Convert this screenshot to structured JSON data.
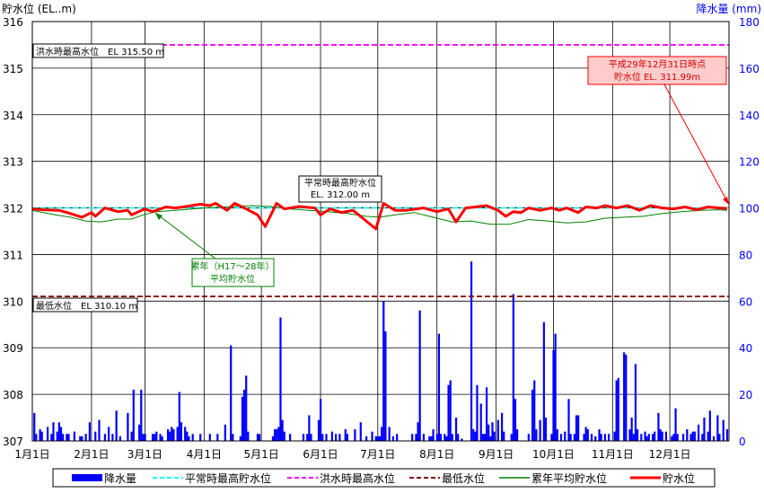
{
  "chart_data": {
    "type": "bar+line",
    "y_left_label": "貯水位 (EL..m)",
    "y_right_label": "降水量 (mm)",
    "ylim_left": [
      307,
      316
    ],
    "ylim_right": [
      0,
      180
    ],
    "yticks_left": [
      "307",
      "308",
      "309",
      "310",
      "311",
      "312",
      "313",
      "314",
      "315",
      "316"
    ],
    "yticks_right": [
      "0",
      "20",
      "40",
      "60",
      "80",
      "100",
      "120",
      "140",
      "160",
      "180"
    ],
    "months": [
      "1月1日",
      "2月1日",
      "3月1日",
      "4月1日",
      "5月1日",
      "6月1日",
      "7月1日",
      "8月1日",
      "9月1日",
      "10月1日",
      "11月1日",
      "12月1日"
    ],
    "reference_lines": [
      {
        "name": "平常時最高貯水位",
        "value": 312.0,
        "color": "#00ffff"
      },
      {
        "name": "洪水時最高水位",
        "value": 315.5,
        "color": "#ff00ff"
      },
      {
        "name": "最低水位",
        "value": 310.1,
        "color": "#800000"
      }
    ],
    "annotations": {
      "flood": "洪水時最高水位　EL 315.50 m",
      "normal_line1": "平常時最高貯水位",
      "normal_line2": "EL. 312.00 m",
      "low": "最低水位　EL 310.10 m",
      "avg_line1": "累年（H17～28年）",
      "avg_line2": "平均貯水位",
      "current_line1": "平成29年12月31日時点",
      "current_line2": "貯水位 EL. 311.99m"
    },
    "legend": [
      "降水量",
      "平常時最高貯水位",
      "洪水時最高水位",
      "最低水位",
      "累年平均貯水位",
      "貯水位"
    ],
    "colors": {
      "rain": "#0000ff",
      "water_level": "#ff0000",
      "average": "#008000",
      "normal_max": "#00ffff",
      "flood": "#ff00ff",
      "low": "#800000",
      "right_axis": "#0000ff",
      "current_box_bg": "#ffcccc",
      "current_box_border": "#ff0000"
    },
    "series": [
      {
        "name": "貯水位",
        "points": [
          [
            0,
            311.98
          ],
          [
            6,
            311.96
          ],
          [
            14,
            311.95
          ],
          [
            20,
            311.88
          ],
          [
            26,
            311.8
          ],
          [
            31,
            311.9
          ],
          [
            33,
            311.82
          ],
          [
            38,
            312.0
          ],
          [
            45,
            311.92
          ],
          [
            50,
            311.95
          ],
          [
            52,
            311.85
          ],
          [
            59,
            311.98
          ],
          [
            63,
            311.92
          ],
          [
            70,
            312.02
          ],
          [
            75,
            312.0
          ],
          [
            82,
            312.04
          ],
          [
            88,
            312.08
          ],
          [
            93,
            312.05
          ],
          [
            96,
            312.1
          ],
          [
            102,
            311.95
          ],
          [
            106,
            312.1
          ],
          [
            112,
            311.98
          ],
          [
            118,
            311.85
          ],
          [
            122,
            311.6
          ],
          [
            128,
            312.1
          ],
          [
            132,
            311.98
          ],
          [
            140,
            312.03
          ],
          [
            148,
            312.0
          ],
          [
            151,
            311.85
          ],
          [
            156,
            311.98
          ],
          [
            162,
            311.9
          ],
          [
            168,
            311.95
          ],
          [
            174,
            311.75
          ],
          [
            180,
            311.55
          ],
          [
            184,
            312.1
          ],
          [
            190,
            311.95
          ],
          [
            196,
            311.95
          ],
          [
            205,
            312.0
          ],
          [
            212,
            311.92
          ],
          [
            218,
            311.98
          ],
          [
            222,
            311.7
          ],
          [
            227,
            312.0
          ],
          [
            232,
            312.02
          ],
          [
            238,
            312.05
          ],
          [
            244,
            311.95
          ],
          [
            248,
            311.82
          ],
          [
            252,
            311.92
          ],
          [
            256,
            311.9
          ],
          [
            260,
            312.0
          ],
          [
            266,
            311.95
          ],
          [
            272,
            312.0
          ],
          [
            276,
            311.95
          ],
          [
            280,
            312.0
          ],
          [
            286,
            311.9
          ],
          [
            290,
            312.02
          ],
          [
            296,
            312.0
          ],
          [
            300,
            312.05
          ],
          [
            306,
            312.0
          ],
          [
            312,
            312.05
          ],
          [
            318,
            311.95
          ],
          [
            324,
            312.05
          ],
          [
            330,
            312.0
          ],
          [
            336,
            311.98
          ],
          [
            342,
            312.02
          ],
          [
            348,
            311.96
          ],
          [
            354,
            312.02
          ],
          [
            360,
            312.0
          ],
          [
            364,
            311.99
          ]
        ]
      },
      {
        "name": "累年平均貯水位",
        "points": [
          [
            0,
            311.95
          ],
          [
            6,
            311.9
          ],
          [
            12,
            311.85
          ],
          [
            20,
            311.8
          ],
          [
            28,
            311.72
          ],
          [
            36,
            311.7
          ],
          [
            45,
            311.76
          ],
          [
            52,
            311.76
          ],
          [
            58,
            311.85
          ],
          [
            65,
            311.92
          ],
          [
            75,
            311.95
          ],
          [
            90,
            312.0
          ],
          [
            100,
            312.02
          ],
          [
            115,
            312.05
          ],
          [
            125,
            312.03
          ],
          [
            135,
            311.98
          ],
          [
            145,
            311.95
          ],
          [
            155,
            311.92
          ],
          [
            165,
            311.88
          ],
          [
            175,
            311.82
          ],
          [
            182,
            311.8
          ],
          [
            190,
            311.85
          ],
          [
            200,
            311.9
          ],
          [
            210,
            311.8
          ],
          [
            220,
            311.7
          ],
          [
            230,
            311.72
          ],
          [
            240,
            311.65
          ],
          [
            250,
            311.65
          ],
          [
            260,
            311.75
          ],
          [
            270,
            311.72
          ],
          [
            280,
            311.68
          ],
          [
            290,
            311.7
          ],
          [
            300,
            311.78
          ],
          [
            310,
            311.8
          ],
          [
            320,
            311.82
          ],
          [
            330,
            311.88
          ],
          [
            340,
            311.92
          ],
          [
            350,
            311.95
          ],
          [
            360,
            311.96
          ],
          [
            364,
            311.95
          ]
        ]
      }
    ],
    "rain_bars": [
      [
        1,
        12
      ],
      [
        2,
        3
      ],
      [
        4,
        5
      ],
      [
        5,
        4
      ],
      [
        8,
        6
      ],
      [
        10,
        3
      ],
      [
        11,
        8
      ],
      [
        13,
        4
      ],
      [
        14,
        8
      ],
      [
        15,
        6
      ],
      [
        16,
        3
      ],
      [
        18,
        3
      ],
      [
        19,
        3
      ],
      [
        22,
        4
      ],
      [
        25,
        2
      ],
      [
        26,
        2
      ],
      [
        28,
        3
      ],
      [
        30,
        8
      ],
      [
        33,
        4
      ],
      [
        35,
        9
      ],
      [
        38,
        3
      ],
      [
        40,
        6
      ],
      [
        42,
        3
      ],
      [
        44,
        13
      ],
      [
        46,
        2
      ],
      [
        50,
        12
      ],
      [
        52,
        4
      ],
      [
        53,
        22
      ],
      [
        56,
        7
      ],
      [
        57,
        22
      ],
      [
        58,
        3
      ],
      [
        59,
        3
      ],
      [
        63,
        3
      ],
      [
        64,
        3
      ],
      [
        65,
        4
      ],
      [
        67,
        3
      ],
      [
        68,
        2
      ],
      [
        71,
        5
      ],
      [
        72,
        4
      ],
      [
        73,
        6
      ],
      [
        74,
        5
      ],
      [
        76,
        6
      ],
      [
        77,
        21
      ],
      [
        78,
        8
      ],
      [
        80,
        6
      ],
      [
        81,
        4
      ],
      [
        82,
        2
      ],
      [
        84,
        3
      ],
      [
        88,
        3
      ],
      [
        93,
        3
      ],
      [
        97,
        3
      ],
      [
        101,
        7
      ],
      [
        104,
        41
      ],
      [
        105,
        3
      ],
      [
        109,
        2
      ],
      [
        110,
        19
      ],
      [
        111,
        22
      ],
      [
        112,
        28
      ],
      [
        113,
        4
      ],
      [
        118,
        3
      ],
      [
        119,
        3
      ],
      [
        126,
        2
      ],
      [
        127,
        5
      ],
      [
        128,
        5
      ],
      [
        129,
        6
      ],
      [
        130,
        53
      ],
      [
        131,
        9
      ],
      [
        132,
        4
      ],
      [
        135,
        3
      ],
      [
        142,
        3
      ],
      [
        144,
        3
      ],
      [
        145,
        11
      ],
      [
        146,
        3
      ],
      [
        150,
        9
      ],
      [
        151,
        18
      ],
      [
        152,
        3
      ],
      [
        154,
        3
      ],
      [
        157,
        4
      ],
      [
        159,
        3
      ],
      [
        161,
        3
      ],
      [
        164,
        5
      ],
      [
        165,
        3
      ],
      [
        169,
        5
      ],
      [
        172,
        8
      ],
      [
        175,
        2
      ],
      [
        178,
        4
      ],
      [
        180,
        2
      ],
      [
        181,
        2
      ],
      [
        182,
        2
      ],
      [
        183,
        6
      ],
      [
        184,
        60
      ],
      [
        185,
        47
      ],
      [
        187,
        6
      ],
      [
        189,
        2
      ],
      [
        191,
        3
      ],
      [
        199,
        3
      ],
      [
        201,
        3
      ],
      [
        202,
        8
      ],
      [
        203,
        56
      ],
      [
        205,
        3
      ],
      [
        208,
        2
      ],
      [
        209,
        2
      ],
      [
        210,
        5
      ],
      [
        212,
        3
      ],
      [
        213,
        46
      ],
      [
        214,
        3
      ],
      [
        216,
        3
      ],
      [
        217,
        2
      ],
      [
        218,
        24
      ],
      [
        219,
        26
      ],
      [
        220,
        3
      ],
      [
        222,
        10
      ],
      [
        223,
        3
      ],
      [
        225,
        1
      ],
      [
        230,
        77
      ],
      [
        231,
        5
      ],
      [
        232,
        4
      ],
      [
        233,
        24
      ],
      [
        235,
        16
      ],
      [
        236,
        3
      ],
      [
        237,
        3
      ],
      [
        238,
        23
      ],
      [
        239,
        7
      ],
      [
        240,
        2
      ],
      [
        241,
        8
      ],
      [
        242,
        4
      ],
      [
        244,
        9
      ],
      [
        246,
        12
      ],
      [
        247,
        4
      ],
      [
        251,
        3
      ],
      [
        252,
        63
      ],
      [
        253,
        18
      ],
      [
        254,
        5
      ],
      [
        260,
        3
      ],
      [
        262,
        22
      ],
      [
        263,
        26
      ],
      [
        264,
        5
      ],
      [
        266,
        9
      ],
      [
        268,
        51
      ],
      [
        269,
        10
      ],
      [
        272,
        3
      ],
      [
        273,
        39
      ],
      [
        274,
        46
      ],
      [
        275,
        5
      ],
      [
        277,
        3
      ],
      [
        279,
        4
      ],
      [
        281,
        18
      ],
      [
        282,
        3
      ],
      [
        284,
        3
      ],
      [
        285,
        11
      ],
      [
        286,
        11
      ],
      [
        289,
        3
      ],
      [
        290,
        6
      ],
      [
        291,
        5
      ],
      [
        293,
        3
      ],
      [
        295,
        2
      ],
      [
        297,
        5
      ],
      [
        298,
        3
      ],
      [
        300,
        3
      ],
      [
        302,
        3
      ],
      [
        305,
        4
      ],
      [
        306,
        26
      ],
      [
        307,
        27
      ],
      [
        310,
        38
      ],
      [
        311,
        37
      ],
      [
        313,
        5
      ],
      [
        314,
        10
      ],
      [
        315,
        3
      ],
      [
        316,
        33
      ],
      [
        317,
        5
      ],
      [
        319,
        3
      ],
      [
        321,
        4
      ],
      [
        322,
        2
      ],
      [
        323,
        3
      ],
      [
        325,
        3
      ],
      [
        326,
        4
      ],
      [
        328,
        12
      ],
      [
        329,
        5
      ],
      [
        330,
        4
      ],
      [
        332,
        4
      ],
      [
        335,
        2
      ],
      [
        336,
        3
      ],
      [
        337,
        14
      ],
      [
        338,
        3
      ],
      [
        341,
        3
      ],
      [
        343,
        5
      ],
      [
        345,
        3
      ],
      [
        346,
        4
      ],
      [
        347,
        4
      ],
      [
        349,
        7
      ],
      [
        351,
        3
      ],
      [
        352,
        10
      ],
      [
        354,
        4
      ],
      [
        355,
        13
      ],
      [
        357,
        2
      ],
      [
        359,
        11
      ],
      [
        360,
        3
      ],
      [
        362,
        9
      ],
      [
        364,
        5
      ]
    ]
  }
}
